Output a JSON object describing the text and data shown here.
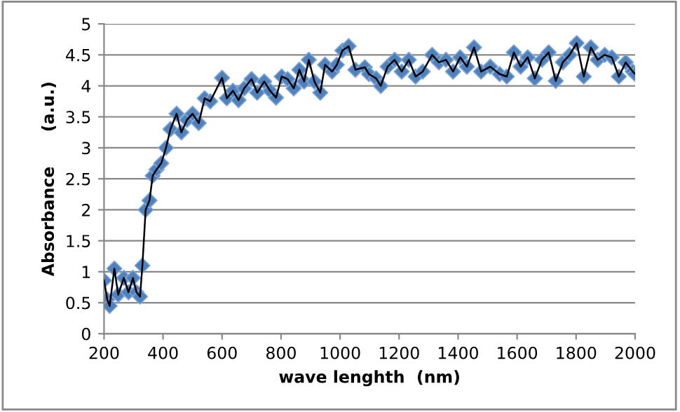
{
  "chart_data": {
    "type": "line",
    "xlabel": "wave lenghth  (nm)",
    "ylabel": "Absorbance      (a.u.)",
    "xlim": [
      200,
      2000
    ],
    "xticks": [
      200,
      400,
      600,
      800,
      1000,
      1200,
      1400,
      1600,
      1800,
      2000
    ],
    "ylim": [
      0,
      5
    ],
    "yticks": [
      0,
      0.5,
      1,
      1.5,
      2,
      2.5,
      3,
      3.5,
      4,
      4.5,
      5
    ],
    "grid": "y",
    "legend": false,
    "series": [
      {
        "type": "scatter",
        "marker": "diamond",
        "color": "#4f81bd",
        "x": [
          200,
          211,
          219,
          235,
          248,
          267,
          283,
          298,
          310,
          322,
          330,
          341,
          354,
          365,
          378,
          394,
          410,
          425,
          446,
          462,
          481,
          500,
          521,
          541,
          560,
          600,
          616,
          637,
          656,
          675,
          700,
          719,
          743,
          763,
          783,
          802,
          822,
          843,
          862,
          878,
          894,
          913,
          933,
          949,
          973,
          989,
          1008,
          1029,
          1052,
          1084,
          1098,
          1122,
          1138,
          1161,
          1185,
          1209,
          1233,
          1256,
          1280,
          1312,
          1335,
          1359,
          1383,
          1407,
          1430,
          1454,
          1478,
          1509,
          1541,
          1565,
          1589,
          1612,
          1636,
          1660,
          1684,
          1707,
          1731,
          1755,
          1778,
          1802,
          1826,
          1850,
          1873,
          1897,
          1921,
          1945,
          1968,
          1992,
          2000
        ],
        "values": [
          0.86,
          0.55,
          0.45,
          1.05,
          0.63,
          0.9,
          0.67,
          0.9,
          0.67,
          0.6,
          1.1,
          2.0,
          2.15,
          2.55,
          2.65,
          2.75,
          3.0,
          3.3,
          3.55,
          3.25,
          3.45,
          3.55,
          3.4,
          3.8,
          3.75,
          4.13,
          3.8,
          3.92,
          3.77,
          3.96,
          4.11,
          3.89,
          4.07,
          3.92,
          3.81,
          4.15,
          4.11,
          3.96,
          4.26,
          4.07,
          4.42,
          4.07,
          3.89,
          4.34,
          4.23,
          4.34,
          4.57,
          4.64,
          4.26,
          4.3,
          4.19,
          4.12,
          4.0,
          4.31,
          4.42,
          4.23,
          4.42,
          4.15,
          4.23,
          4.5,
          4.38,
          4.42,
          4.23,
          4.46,
          4.31,
          4.62,
          4.23,
          4.31,
          4.19,
          4.15,
          4.54,
          4.31,
          4.46,
          4.12,
          4.42,
          4.54,
          4.08,
          4.38,
          4.5,
          4.69,
          4.15,
          4.62,
          4.42,
          4.5,
          4.46,
          4.15,
          4.38,
          4.23,
          4.19
        ]
      },
      {
        "marker": "none",
        "line_style": "solid",
        "color": "#000000",
        "x": [
          200,
          211,
          219,
          235,
          248,
          267,
          283,
          298,
          310,
          322,
          330,
          341,
          354,
          365,
          378,
          394,
          410,
          425,
          446,
          462,
          481,
          500,
          521,
          541,
          560,
          600,
          616,
          637,
          656,
          675,
          700,
          719,
          743,
          763,
          783,
          802,
          822,
          843,
          862,
          878,
          894,
          913,
          933,
          949,
          973,
          989,
          1008,
          1029,
          1052,
          1084,
          1098,
          1122,
          1138,
          1161,
          1185,
          1209,
          1233,
          1256,
          1280,
          1312,
          1335,
          1359,
          1383,
          1407,
          1430,
          1454,
          1478,
          1509,
          1541,
          1565,
          1589,
          1612,
          1636,
          1660,
          1684,
          1707,
          1731,
          1755,
          1778,
          1802,
          1826,
          1850,
          1873,
          1897,
          1921,
          1945,
          1968,
          1992,
          2000
        ],
        "values": [
          0.86,
          0.55,
          0.45,
          1.05,
          0.63,
          0.9,
          0.67,
          0.9,
          0.67,
          0.6,
          1.1,
          2.0,
          2.15,
          2.55,
          2.65,
          2.75,
          3.0,
          3.3,
          3.55,
          3.25,
          3.45,
          3.55,
          3.4,
          3.8,
          3.75,
          4.13,
          3.8,
          3.92,
          3.77,
          3.96,
          4.11,
          3.89,
          4.07,
          3.92,
          3.81,
          4.15,
          4.11,
          3.96,
          4.26,
          4.07,
          4.42,
          4.07,
          3.89,
          4.34,
          4.23,
          4.34,
          4.57,
          4.64,
          4.26,
          4.3,
          4.19,
          4.12,
          4.0,
          4.31,
          4.42,
          4.23,
          4.42,
          4.15,
          4.23,
          4.5,
          4.38,
          4.42,
          4.23,
          4.46,
          4.31,
          4.62,
          4.23,
          4.31,
          4.19,
          4.15,
          4.54,
          4.31,
          4.46,
          4.12,
          4.42,
          4.54,
          4.08,
          4.38,
          4.5,
          4.69,
          4.15,
          4.62,
          4.42,
          4.5,
          4.46,
          4.15,
          4.38,
          4.23,
          4.19
        ]
      }
    ]
  }
}
